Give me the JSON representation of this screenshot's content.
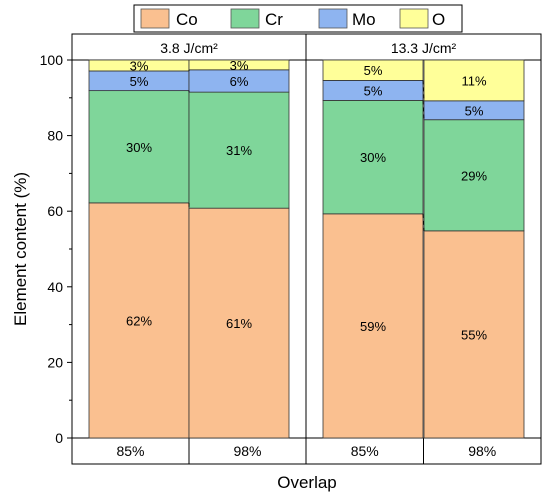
{
  "chart_data": {
    "type": "bar",
    "stacked": true,
    "ylabel": "Element content (%)",
    "xlabel": "Overlap",
    "ylim": [
      0,
      100
    ],
    "yticks": [
      0,
      20,
      40,
      60,
      80,
      100
    ],
    "legend": {
      "placement": "top",
      "entries": [
        {
          "name": "Co",
          "color": "#FAC090"
        },
        {
          "name": "Cr",
          "color": "#7FD69A"
        },
        {
          "name": "Mo",
          "color": "#8EB4F0"
        },
        {
          "name": "O",
          "color": "#FFFF99"
        }
      ]
    },
    "panels": [
      {
        "title": "3.8 J/cm²",
        "categories": [
          "85%",
          "98%"
        ],
        "series": [
          {
            "name": "Co",
            "values": [
              62,
              61
            ],
            "labels": [
              "62%",
              "61%"
            ]
          },
          {
            "name": "Cr",
            "values": [
              30,
              31
            ],
            "labels": [
              "30%",
              "31%"
            ]
          },
          {
            "name": "Mo",
            "values": [
              5,
              6
            ],
            "labels": [
              "5%",
              "6%"
            ]
          },
          {
            "name": "O",
            "values": [
              3,
              3
            ],
            "labels": [
              "3%",
              "3%"
            ]
          }
        ],
        "exact_values": {
          "Co": [
            62.2,
            60.8
          ],
          "Cr": [
            29.7,
            30.7
          ],
          "Mo": [
            5.2,
            5.9
          ],
          "O": [
            2.9,
            2.6
          ]
        }
      },
      {
        "title": "13.3 J/cm²",
        "categories": [
          "85%",
          "98%"
        ],
        "series": [
          {
            "name": "Co",
            "values": [
              59,
              55
            ],
            "labels": [
              "59%",
              "55%"
            ]
          },
          {
            "name": "Cr",
            "values": [
              30,
              29
            ],
            "labels": [
              "30%",
              "29%"
            ]
          },
          {
            "name": "Mo",
            "values": [
              5,
              5
            ],
            "labels": [
              "5%",
              "5%"
            ]
          },
          {
            "name": "O",
            "values": [
              5,
              11
            ],
            "labels": [
              "5%",
              "11%"
            ]
          }
        ],
        "exact_values": {
          "Co": [
            59.3,
            54.8
          ],
          "Cr": [
            30.0,
            29.4
          ],
          "Mo": [
            5.3,
            5.0
          ],
          "O": [
            5.4,
            10.8
          ]
        }
      }
    ],
    "connectors": "dashed lines between adjacent bars at segment boundaries",
    "grid": false
  }
}
